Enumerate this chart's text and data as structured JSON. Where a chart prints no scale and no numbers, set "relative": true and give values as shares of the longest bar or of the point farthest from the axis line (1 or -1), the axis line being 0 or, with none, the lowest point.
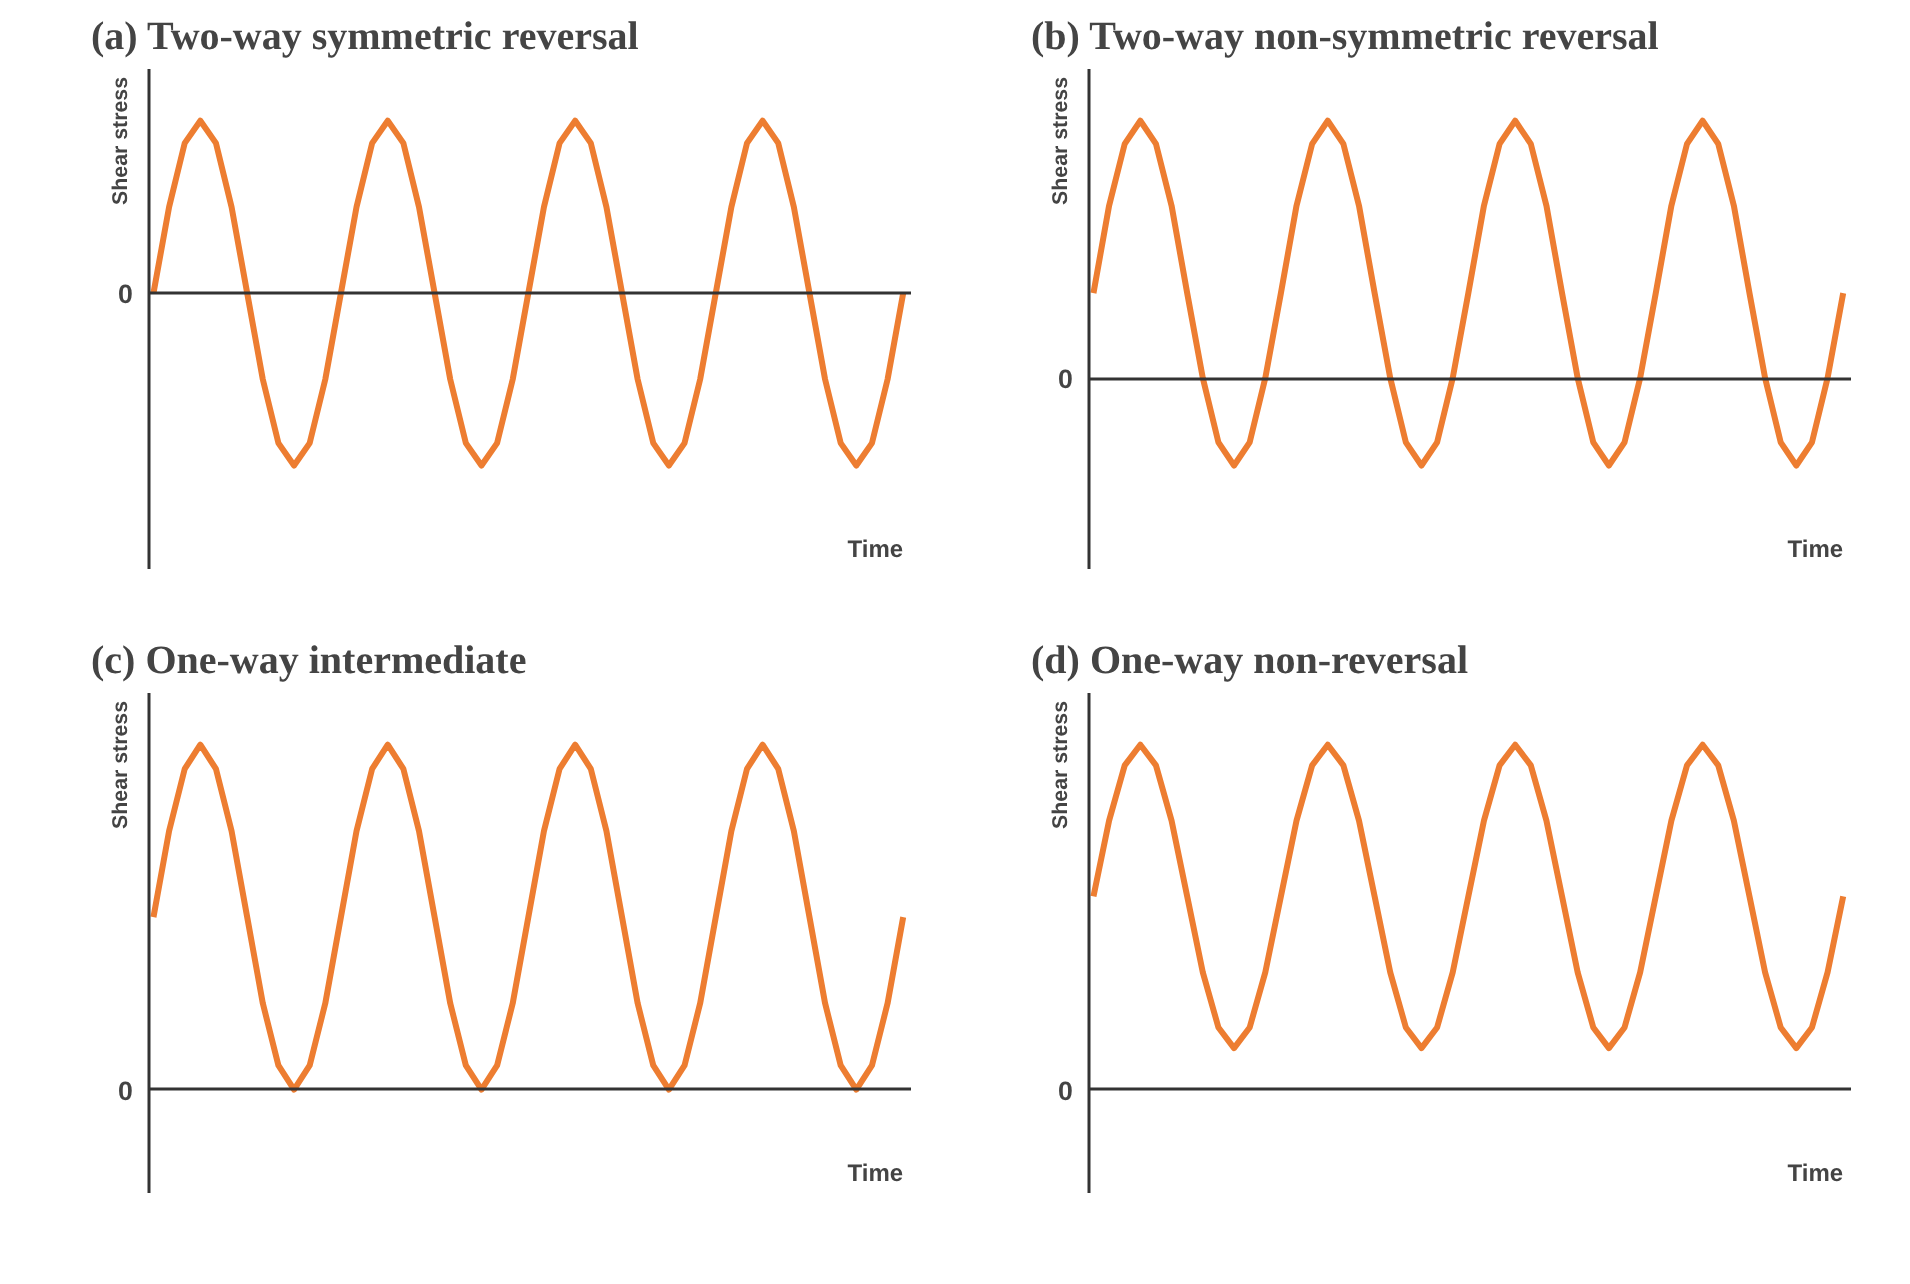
{
  "chart_data": [
    {
      "type": "line",
      "title": "(a) Two-way symmetric reversal",
      "xlabel": "Time",
      "ylabel": "Shear stress",
      "relative": true,
      "annotations": [
        "0"
      ],
      "marker": "none",
      "line_style": "solid",
      "categories": [
        null,
        null,
        null,
        null,
        null,
        null,
        null,
        null,
        null,
        null,
        null,
        null,
        null,
        null,
        null,
        null,
        null,
        null,
        null,
        null,
        null,
        null,
        null,
        null,
        null,
        null,
        null,
        null,
        null,
        null,
        null,
        null,
        null,
        null,
        null,
        null,
        null,
        null,
        null,
        null,
        null,
        null,
        null,
        null,
        null,
        null,
        null,
        null,
        null
      ],
      "series": [
        {
          "color": "#ed7d31",
          "values": [
            0,
            0.5,
            0.87,
            1,
            0.87,
            0.5,
            0,
            -0.5,
            -0.87,
            -1,
            -0.87,
            -0.5,
            0,
            0.5,
            0.87,
            1,
            0.87,
            0.5,
            0,
            -0.5,
            -0.87,
            -1,
            -0.87,
            -0.5,
            0,
            0.5,
            0.87,
            1,
            0.87,
            0.5,
            0,
            -0.5,
            -0.87,
            -1,
            -0.87,
            -0.5,
            0,
            0.5,
            0.87,
            1,
            0.87,
            0.5,
            0,
            -0.5,
            -0.87,
            -1,
            -0.87,
            -0.5,
            0
          ]
        }
      ]
    },
    {
      "type": "line",
      "title": "(b) Two-way non-symmetric reversal",
      "xlabel": "Time",
      "ylabel": "Shear stress",
      "relative": true,
      "annotations": [
        "0"
      ],
      "marker": "none",
      "line_style": "solid",
      "categories": [
        null,
        null,
        null,
        null,
        null,
        null,
        null,
        null,
        null,
        null,
        null,
        null,
        null,
        null,
        null,
        null,
        null,
        null,
        null,
        null,
        null,
        null,
        null,
        null,
        null,
        null,
        null,
        null,
        null,
        null,
        null,
        null,
        null,
        null,
        null,
        null,
        null,
        null,
        null,
        null,
        null,
        null,
        null,
        null,
        null,
        null,
        null,
        null,
        null
      ],
      "series": [
        {
          "color": "#ed7d31",
          "values": [
            0.33,
            0.67,
            0.91,
            1,
            0.91,
            0.67,
            0.33,
            0,
            -0.25,
            -0.34,
            -0.25,
            0,
            0.33,
            0.67,
            0.91,
            1,
            0.91,
            0.67,
            0.33,
            0,
            -0.25,
            -0.34,
            -0.25,
            0,
            0.33,
            0.67,
            0.91,
            1,
            0.91,
            0.67,
            0.33,
            0,
            -0.25,
            -0.34,
            -0.25,
            0,
            0.33,
            0.67,
            0.91,
            1,
            0.91,
            0.67,
            0.33,
            0,
            -0.25,
            -0.34,
            -0.25,
            0,
            0.33
          ]
        }
      ]
    },
    {
      "type": "line",
      "title": "(c) One-way intermediate",
      "xlabel": "Time",
      "ylabel": "Shear stress",
      "relative": true,
      "annotations": [
        "0"
      ],
      "marker": "none",
      "line_style": "solid",
      "categories": [
        null,
        null,
        null,
        null,
        null,
        null,
        null,
        null,
        null,
        null,
        null,
        null,
        null,
        null,
        null,
        null,
        null,
        null,
        null,
        null,
        null,
        null,
        null,
        null,
        null,
        null,
        null,
        null,
        null,
        null,
        null,
        null,
        null,
        null,
        null,
        null,
        null,
        null,
        null,
        null,
        null,
        null,
        null,
        null,
        null,
        null,
        null,
        null,
        null
      ],
      "series": [
        {
          "color": "#ed7d31",
          "values": [
            0.5,
            0.75,
            0.93,
            1,
            0.93,
            0.75,
            0.5,
            0.25,
            0.07,
            0,
            0.07,
            0.25,
            0.5,
            0.75,
            0.93,
            1,
            0.93,
            0.75,
            0.5,
            0.25,
            0.07,
            0,
            0.07,
            0.25,
            0.5,
            0.75,
            0.93,
            1,
            0.93,
            0.75,
            0.5,
            0.25,
            0.07,
            0,
            0.07,
            0.25,
            0.5,
            0.75,
            0.93,
            1,
            0.93,
            0.75,
            0.5,
            0.25,
            0.07,
            0,
            0.07,
            0.25,
            0.5
          ]
        }
      ]
    },
    {
      "type": "line",
      "title": "(d) One-way non-reversal",
      "xlabel": "Time",
      "ylabel": "Shear stress",
      "relative": true,
      "annotations": [
        "0"
      ],
      "marker": "none",
      "line_style": "solid",
      "categories": [
        null,
        null,
        null,
        null,
        null,
        null,
        null,
        null,
        null,
        null,
        null,
        null,
        null,
        null,
        null,
        null,
        null,
        null,
        null,
        null,
        null,
        null,
        null,
        null,
        null,
        null,
        null,
        null,
        null,
        null,
        null,
        null,
        null,
        null,
        null,
        null,
        null,
        null,
        null,
        null,
        null,
        null,
        null,
        null,
        null,
        null,
        null,
        null,
        null
      ],
      "series": [
        {
          "color": "#ed7d31",
          "values": [
            0.56,
            0.78,
            0.94,
            1,
            0.94,
            0.78,
            0.56,
            0.34,
            0.18,
            0.12,
            0.18,
            0.34,
            0.56,
            0.78,
            0.94,
            1,
            0.94,
            0.78,
            0.56,
            0.34,
            0.18,
            0.12,
            0.18,
            0.34,
            0.56,
            0.78,
            0.94,
            1,
            0.94,
            0.78,
            0.56,
            0.34,
            0.18,
            0.12,
            0.18,
            0.34,
            0.56,
            0.78,
            0.94,
            1,
            0.94,
            0.78,
            0.56,
            0.34,
            0.18,
            0.12,
            0.18,
            0.34,
            0.56
          ]
        }
      ]
    }
  ]
}
